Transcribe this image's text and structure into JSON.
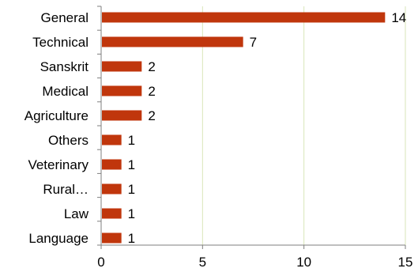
{
  "chart_data": {
    "type": "bar",
    "orientation": "horizontal",
    "title": "",
    "xlabel": "",
    "ylabel": "",
    "categories": [
      "General",
      "Technical",
      "Sanskrit",
      "Medical",
      "Agriculture",
      "Others",
      "Veterinary",
      "Rural…",
      "Law",
      "Language"
    ],
    "values": [
      14,
      7,
      2,
      2,
      2,
      1,
      1,
      1,
      1,
      1
    ],
    "xlim": [
      0,
      15
    ],
    "xticks": [
      0,
      5,
      10,
      15
    ],
    "xtick_labels": [
      "0",
      "5",
      "10",
      "15"
    ],
    "grid": "vertical",
    "legend": "none",
    "colors": {
      "bar": "#C0360C",
      "grid": "#D9E6B8",
      "axis": "#7F7F7F"
    }
  }
}
